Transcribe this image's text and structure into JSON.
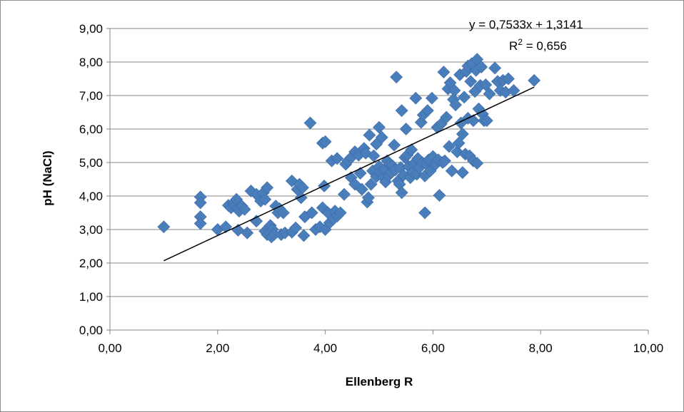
{
  "chart_data": {
    "type": "scatter",
    "title": "",
    "xlabel": "Ellenberg R",
    "ylabel": "pH (NaCl)",
    "xlim": [
      0,
      10
    ],
    "ylim": [
      0,
      9
    ],
    "x_ticks": [
      "0,00",
      "2,00",
      "4,00",
      "6,00",
      "8,00",
      "10,00"
    ],
    "y_ticks": [
      "0,00",
      "1,00",
      "2,00",
      "3,00",
      "4,00",
      "5,00",
      "6,00",
      "7,00",
      "8,00",
      "9,00"
    ],
    "grid": "horizontal",
    "legend": "none",
    "marker": "diamond",
    "marker_color": "#4a7ebb",
    "trendline_color": "#000000",
    "trendline": {
      "slope": 0.7533,
      "intercept": 1.3141,
      "x_range": [
        1.0,
        7.88
      ]
    },
    "annotations": {
      "equation": "y = 0,7533x + 1,3141",
      "r2": "R² = 0,656"
    },
    "points": [
      [
        1.0,
        3.08
      ],
      [
        1.68,
        3.97
      ],
      [
        1.68,
        3.8
      ],
      [
        1.68,
        3.38
      ],
      [
        1.68,
        3.18
      ],
      [
        2.0,
        3.0
      ],
      [
        2.15,
        3.08
      ],
      [
        2.2,
        3.72
      ],
      [
        2.25,
        3.65
      ],
      [
        2.3,
        3.8
      ],
      [
        2.33,
        3.7
      ],
      [
        2.35,
        3.9
      ],
      [
        2.38,
        3.62
      ],
      [
        2.4,
        3.55
      ],
      [
        2.38,
        2.98
      ],
      [
        2.45,
        3.7
      ],
      [
        2.5,
        3.6
      ],
      [
        2.55,
        2.9
      ],
      [
        2.62,
        4.15
      ],
      [
        2.72,
        4.05
      ],
      [
        2.72,
        3.25
      ],
      [
        2.8,
        3.85
      ],
      [
        2.85,
        4.1
      ],
      [
        2.88,
        3.9
      ],
      [
        2.92,
        4.25
      ],
      [
        2.88,
        2.95
      ],
      [
        2.92,
        2.85
      ],
      [
        2.98,
        3.12
      ],
      [
        3.0,
        2.78
      ],
      [
        3.02,
        3.0
      ],
      [
        3.05,
        2.85
      ],
      [
        3.08,
        3.7
      ],
      [
        3.12,
        3.5
      ],
      [
        3.15,
        3.62
      ],
      [
        3.18,
        2.85
      ],
      [
        3.22,
        3.5
      ],
      [
        3.25,
        2.9
      ],
      [
        3.38,
        4.45
      ],
      [
        3.38,
        2.92
      ],
      [
        3.45,
        3.05
      ],
      [
        3.48,
        4.2
      ],
      [
        3.52,
        4.35
      ],
      [
        3.55,
        3.95
      ],
      [
        3.58,
        4.25
      ],
      [
        3.62,
        3.38
      ],
      [
        3.6,
        2.82
      ],
      [
        3.72,
        6.18
      ],
      [
        3.75,
        3.5
      ],
      [
        3.82,
        3.0
      ],
      [
        3.9,
        3.08
      ],
      [
        3.95,
        5.58
      ],
      [
        3.95,
        3.65
      ],
      [
        3.98,
        4.3
      ],
      [
        4.0,
        5.62
      ],
      [
        4.0,
        3.0
      ],
      [
        4.05,
        3.5
      ],
      [
        4.08,
        3.2
      ],
      [
        4.12,
        5.05
      ],
      [
        4.15,
        3.32
      ],
      [
        4.18,
        3.55
      ],
      [
        4.22,
        5.12
      ],
      [
        4.22,
        3.4
      ],
      [
        4.28,
        3.5
      ],
      [
        4.35,
        4.05
      ],
      [
        4.38,
        4.95
      ],
      [
        4.42,
        5.05
      ],
      [
        4.48,
        5.15
      ],
      [
        4.48,
        4.55
      ],
      [
        4.55,
        5.32
      ],
      [
        4.55,
        4.35
      ],
      [
        4.62,
        5.22
      ],
      [
        4.65,
        4.68
      ],
      [
        4.68,
        4.2
      ],
      [
        4.72,
        5.42
      ],
      [
        4.75,
        5.28
      ],
      [
        4.78,
        3.82
      ],
      [
        4.8,
        3.95
      ],
      [
        4.82,
        5.82
      ],
      [
        4.85,
        4.35
      ],
      [
        4.88,
        4.75
      ],
      [
        4.9,
        5.2
      ],
      [
        4.95,
        4.58
      ],
      [
        4.95,
        5.55
      ],
      [
        5.0,
        6.05
      ],
      [
        5.0,
        4.88
      ],
      [
        5.02,
        4.72
      ],
      [
        5.05,
        5.75
      ],
      [
        5.08,
        4.55
      ],
      [
        5.1,
        4.8
      ],
      [
        5.12,
        4.42
      ],
      [
        5.15,
        5.05
      ],
      [
        5.18,
        4.62
      ],
      [
        5.2,
        4.95
      ],
      [
        5.22,
        4.7
      ],
      [
        5.25,
        4.9
      ],
      [
        5.28,
        5.52
      ],
      [
        5.3,
        4.78
      ],
      [
        5.32,
        7.55
      ],
      [
        5.35,
        4.45
      ],
      [
        5.38,
        4.35
      ],
      [
        5.4,
        4.85
      ],
      [
        5.42,
        4.1
      ],
      [
        5.42,
        6.55
      ],
      [
        5.45,
        4.62
      ],
      [
        5.48,
        5.15
      ],
      [
        5.5,
        6.0
      ],
      [
        5.52,
        5.22
      ],
      [
        5.55,
        4.88
      ],
      [
        5.58,
        4.55
      ],
      [
        5.6,
        5.38
      ],
      [
        5.62,
        4.72
      ],
      [
        5.65,
        4.98
      ],
      [
        5.68,
        6.92
      ],
      [
        5.7,
        4.65
      ],
      [
        5.72,
        5.12
      ],
      [
        5.75,
        4.85
      ],
      [
        5.78,
        6.2
      ],
      [
        5.8,
        5.0
      ],
      [
        5.82,
        6.42
      ],
      [
        5.85,
        3.5
      ],
      [
        5.85,
        4.6
      ],
      [
        5.88,
        4.95
      ],
      [
        5.9,
        6.55
      ],
      [
        5.92,
        5.08
      ],
      [
        5.95,
        4.75
      ],
      [
        5.98,
        6.92
      ],
      [
        6.0,
        5.18
      ],
      [
        6.05,
        4.95
      ],
      [
        6.08,
        6.05
      ],
      [
        6.1,
        5.08
      ],
      [
        6.12,
        4.02
      ],
      [
        6.15,
        6.15
      ],
      [
        6.18,
        5.0
      ],
      [
        6.2,
        7.7
      ],
      [
        6.22,
        5.05
      ],
      [
        6.25,
        6.35
      ],
      [
        6.28,
        7.2
      ],
      [
        6.3,
        5.48
      ],
      [
        6.32,
        7.38
      ],
      [
        6.35,
        4.75
      ],
      [
        6.38,
        6.88
      ],
      [
        6.4,
        7.15
      ],
      [
        6.42,
        6.72
      ],
      [
        6.45,
        5.32
      ],
      [
        6.48,
        5.58
      ],
      [
        6.5,
        7.62
      ],
      [
        6.52,
        6.18
      ],
      [
        6.55,
        4.7
      ],
      [
        6.55,
        5.85
      ],
      [
        6.58,
        6.95
      ],
      [
        6.6,
        5.25
      ],
      [
        6.62,
        7.72
      ],
      [
        6.65,
        7.88
      ],
      [
        6.65,
        6.32
      ],
      [
        6.68,
        5.2
      ],
      [
        6.7,
        7.42
      ],
      [
        6.72,
        7.95
      ],
      [
        6.75,
        5.05
      ],
      [
        6.75,
        6.25
      ],
      [
        6.78,
        7.12
      ],
      [
        6.8,
        7.75
      ],
      [
        6.82,
        4.98
      ],
      [
        6.82,
        8.08
      ],
      [
        6.85,
        6.6
      ],
      [
        6.88,
        7.3
      ],
      [
        6.9,
        7.85
      ],
      [
        6.92,
        6.45
      ],
      [
        6.95,
        6.25
      ],
      [
        6.98,
        7.32
      ],
      [
        7.0,
        6.25
      ],
      [
        7.05,
        7.05
      ],
      [
        7.15,
        7.82
      ],
      [
        7.2,
        7.42
      ],
      [
        7.25,
        7.15
      ],
      [
        7.3,
        7.45
      ],
      [
        7.35,
        7.1
      ],
      [
        7.4,
        7.5
      ],
      [
        7.5,
        7.15
      ],
      [
        7.88,
        7.45
      ]
    ]
  }
}
